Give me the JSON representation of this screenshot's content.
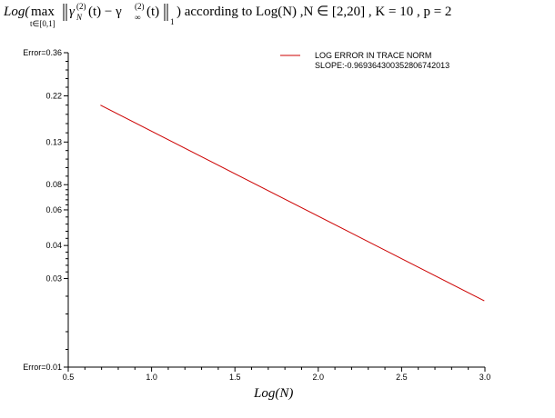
{
  "chart_data": {
    "type": "line",
    "title": {
      "prefix": "Log(",
      "max_op": "max",
      "max_sub": "t∈[0,1]",
      "norm_expr_a": "γ",
      "norm_sub_a": "N",
      "norm_sup_a": "(2)",
      "norm_mid": "(t) − γ",
      "norm_sub_b": "∞",
      "norm_sup_b": "(2)",
      "norm_end": "(t)",
      "norm_index": "1",
      "suffix": ") according to Log(N) ,N ∈ [2,20] , K = 10 , p = 2"
    },
    "xlabel": "Log(N)",
    "ylabel": "",
    "x_ticks": [
      "0.5",
      "1.0",
      "1.5",
      "2.0",
      "2.5",
      "3.0"
    ],
    "x_tick_values": [
      0.5,
      1.0,
      1.5,
      2.0,
      2.5,
      3.0
    ],
    "y_ticks": [
      "Error=0.01",
      "0.03",
      "0.04",
      "0.06",
      "0.08",
      "0.13",
      "0.22",
      "Error=0.36"
    ],
    "y_tick_values": [
      -4.605,
      -3.595,
      -3.219,
      -2.813,
      -2.526,
      -2.04,
      -1.514,
      -1.022
    ],
    "xlim": [
      0.5,
      3.0
    ],
    "ylim": [
      -4.605,
      -1.022
    ],
    "legend": {
      "position": "top-right",
      "entries": [
        "LOG ERROR IN TRACE NORM",
        "SLOPE:-0.969364300352806742013"
      ]
    },
    "series": [
      {
        "name": "LOG ERROR IN TRACE NORM",
        "color": "#cc0000",
        "x": [
          0.693,
          2.996
        ],
        "y": [
          -1.62,
          -3.85
        ]
      }
    ]
  }
}
